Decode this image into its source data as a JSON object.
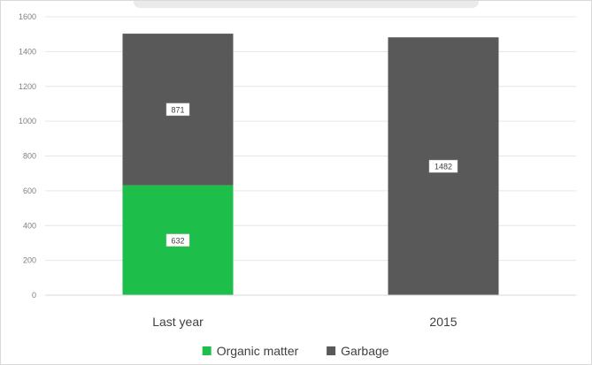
{
  "chart_data": {
    "type": "bar",
    "stacked": true,
    "categories": [
      "Last year",
      "2015"
    ],
    "series": [
      {
        "name": "Organic matter",
        "values": [
          632,
          0
        ],
        "color": "#1ebe4a"
      },
      {
        "name": "Garbage",
        "values": [
          871,
          1482
        ],
        "color": "#595959"
      }
    ],
    "ylim": [
      0,
      1600
    ],
    "yticks": [
      0,
      200,
      400,
      600,
      800,
      1000,
      1200,
      1400,
      1600
    ],
    "data_labels": true,
    "grid": true,
    "legend_position": "bottom",
    "title": "",
    "xlabel": "",
    "ylabel": ""
  }
}
